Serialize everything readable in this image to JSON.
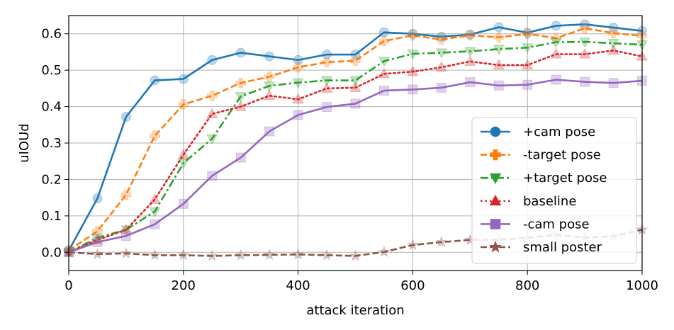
{
  "chart_data": {
    "type": "line",
    "xlabel": "attack iteration",
    "ylabel": "uIOUd",
    "xlim": [
      0,
      1000
    ],
    "ylim": [
      -0.05,
      0.65
    ],
    "x_ticks": [
      0,
      200,
      400,
      600,
      800,
      1000
    ],
    "y_ticks": [
      0.0,
      0.1,
      0.2,
      0.3,
      0.4,
      0.5,
      0.6
    ],
    "grid": true,
    "legend_position": "lower-right",
    "x": [
      0,
      50,
      100,
      150,
      200,
      250,
      300,
      350,
      400,
      450,
      500,
      550,
      600,
      650,
      700,
      750,
      800,
      850,
      900,
      950,
      1000
    ],
    "series": [
      {
        "name": "+cam pose",
        "color": "#1f77b4",
        "linestyle": "solid",
        "marker": "circle",
        "values": [
          0.005,
          0.148,
          0.372,
          0.472,
          0.476,
          0.528,
          0.548,
          0.538,
          0.528,
          0.543,
          0.543,
          0.604,
          0.6,
          0.592,
          0.598,
          0.618,
          0.603,
          0.622,
          0.626,
          0.617,
          0.608
        ]
      },
      {
        "name": "-target pose",
        "color": "#ff7f0e",
        "linestyle": "dashed",
        "marker": "plus",
        "values": [
          0.005,
          0.058,
          0.158,
          0.32,
          0.406,
          0.43,
          0.465,
          0.482,
          0.508,
          0.522,
          0.526,
          0.58,
          0.596,
          0.584,
          0.596,
          0.59,
          0.6,
          0.588,
          0.615,
          0.602,
          0.594
        ]
      },
      {
        "name": "+target pose",
        "color": "#2ca02c",
        "linestyle": "dashdot",
        "marker": "triangle-down",
        "values": [
          0.0,
          0.04,
          0.062,
          0.112,
          0.245,
          0.312,
          0.428,
          0.457,
          0.466,
          0.472,
          0.472,
          0.525,
          0.545,
          0.548,
          0.552,
          0.558,
          0.562,
          0.577,
          0.578,
          0.574,
          0.57
        ]
      },
      {
        "name": "baseline",
        "color": "#d62728",
        "linestyle": "dotted",
        "marker": "triangle-up",
        "values": [
          0.0,
          0.034,
          0.062,
          0.145,
          0.268,
          0.38,
          0.4,
          0.43,
          0.42,
          0.45,
          0.452,
          0.49,
          0.496,
          0.508,
          0.524,
          0.514,
          0.514,
          0.544,
          0.544,
          0.554,
          0.538
        ]
      },
      {
        "name": "-cam pose",
        "color": "#9467bd",
        "linestyle": "solid",
        "marker": "square",
        "values": [
          0.0,
          0.028,
          0.045,
          0.077,
          0.133,
          0.21,
          0.26,
          0.332,
          0.377,
          0.399,
          0.408,
          0.444,
          0.447,
          0.452,
          0.467,
          0.458,
          0.46,
          0.474,
          0.468,
          0.465,
          0.471
        ]
      },
      {
        "name": "small poster",
        "color": "#8c564b",
        "linestyle": "dashed",
        "marker": "star",
        "values": [
          0.0,
          -0.005,
          -0.003,
          -0.008,
          -0.008,
          -0.01,
          -0.008,
          -0.007,
          -0.006,
          -0.008,
          -0.01,
          0.001,
          0.02,
          0.028,
          0.034,
          0.034,
          0.04,
          0.048,
          0.04,
          0.044,
          0.062
        ]
      }
    ]
  }
}
